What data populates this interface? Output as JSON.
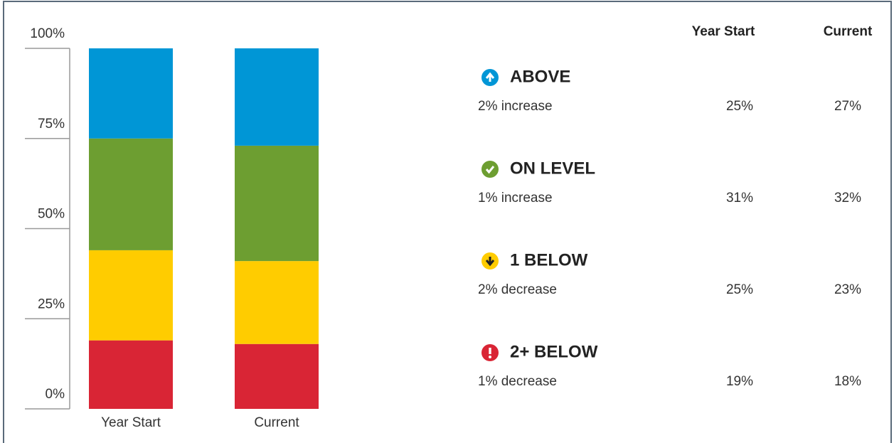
{
  "chart_data": {
    "type": "stacked_bar",
    "categories": [
      "Year Start",
      "Current"
    ],
    "ylim": [
      0,
      100
    ],
    "yticks": [
      {
        "value": 0,
        "label": "0%"
      },
      {
        "value": 25,
        "label": "25%"
      },
      {
        "value": 50,
        "label": "50%"
      },
      {
        "value": 75,
        "label": "75%"
      },
      {
        "value": 100,
        "label": "100%"
      }
    ],
    "series": [
      {
        "name": "ABOVE",
        "color": "#0096d6",
        "note": "2% increase",
        "values": [
          25,
          27
        ],
        "value_labels": [
          "25%",
          "27%"
        ]
      },
      {
        "name": "ON LEVEL",
        "color": "#6d9e31",
        "note": "1% increase",
        "values": [
          31,
          32
        ],
        "value_labels": [
          "31%",
          "32%"
        ]
      },
      {
        "name": "1 BELOW",
        "color": "#ffcc00",
        "note": "2% decrease",
        "values": [
          25,
          23
        ],
        "value_labels": [
          "25%",
          "23%"
        ]
      },
      {
        "name": "2+ BELOW",
        "color": "#d92535",
        "note": "1% decrease",
        "values": [
          19,
          18
        ],
        "value_labels": [
          "19%",
          "18%"
        ]
      }
    ]
  }
}
